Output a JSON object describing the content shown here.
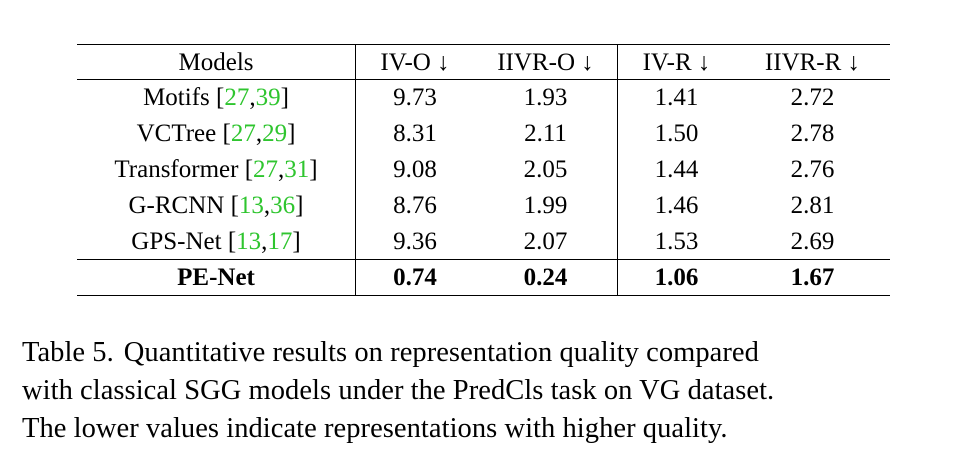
{
  "table": {
    "headers": {
      "model": "Models",
      "ivo": "IV-O ↓",
      "iivro": "IIVR-O ↓",
      "ivr": "IV-R ↓",
      "iivrr": "IIVR-R ↓"
    },
    "rows": [
      {
        "model": "Motifs",
        "cite_a": "27",
        "cite_b": "39",
        "ivo": "9.73",
        "iivro": "1.93",
        "ivr": "1.41",
        "iivrr": "2.72"
      },
      {
        "model": "VCTree",
        "cite_a": "27",
        "cite_b": "29",
        "ivo": "8.31",
        "iivro": "2.11",
        "ivr": "1.50",
        "iivrr": "2.78"
      },
      {
        "model": "Transformer",
        "cite_a": "27",
        "cite_b": "31",
        "ivo": "9.08",
        "iivro": "2.05",
        "ivr": "1.44",
        "iivrr": "2.76"
      },
      {
        "model": "G-RCNN",
        "cite_a": "13",
        "cite_b": "36",
        "ivo": "8.76",
        "iivro": "1.99",
        "ivr": "1.46",
        "iivrr": "2.81"
      },
      {
        "model": "GPS-Net",
        "cite_a": "13",
        "cite_b": "17",
        "ivo": "9.36",
        "iivro": "2.07",
        "ivr": "1.53",
        "iivrr": "2.69"
      }
    ],
    "best": {
      "model": "PE-Net",
      "ivo": "0.74",
      "iivro": "0.24",
      "ivr": "1.06",
      "iivrr": "1.67"
    }
  },
  "caption": {
    "label": "Table 5.",
    "line1": "Quantitative results on representation quality compared",
    "line2": "with classical SGG models under the PredCls task on VG dataset.",
    "line3": "The lower values indicate representations with higher quality."
  },
  "colors": {
    "citation": "#2fc52f",
    "text": "#000000"
  }
}
